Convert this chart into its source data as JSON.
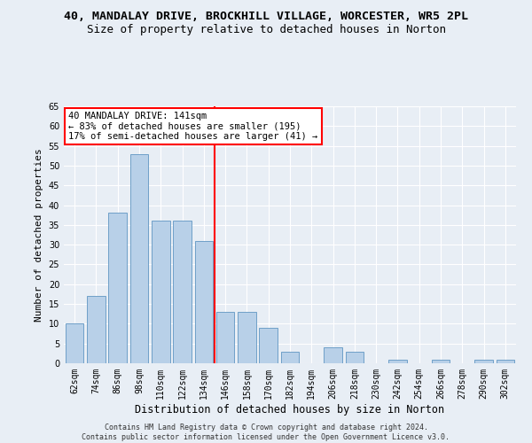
{
  "title": "40, MANDALAY DRIVE, BROCKHILL VILLAGE, WORCESTER, WR5 2PL",
  "subtitle": "Size of property relative to detached houses in Norton",
  "xlabel": "Distribution of detached houses by size in Norton",
  "ylabel": "Number of detached properties",
  "categories": [
    "62sqm",
    "74sqm",
    "86sqm",
    "98sqm",
    "110sqm",
    "122sqm",
    "134sqm",
    "146sqm",
    "158sqm",
    "170sqm",
    "182sqm",
    "194sqm",
    "206sqm",
    "218sqm",
    "230sqm",
    "242sqm",
    "254sqm",
    "266sqm",
    "278sqm",
    "290sqm",
    "302sqm"
  ],
  "values": [
    10,
    17,
    38,
    53,
    36,
    36,
    31,
    13,
    13,
    9,
    3,
    0,
    4,
    3,
    0,
    1,
    0,
    1,
    0,
    1,
    1
  ],
  "bar_color": "#b8d0e8",
  "bar_edge_color": "#6fa0c8",
  "reference_line_x": 6.5,
  "annotation_text_line1": "40 MANDALAY DRIVE: 141sqm",
  "annotation_text_line2": "← 83% of detached houses are smaller (195)",
  "annotation_text_line3": "17% of semi-detached houses are larger (41) →",
  "annotation_box_color": "white",
  "annotation_box_edge": "red",
  "vline_color": "red",
  "background_color": "#e8eef5",
  "grid_color": "white",
  "ylim": [
    0,
    65
  ],
  "yticks": [
    0,
    5,
    10,
    15,
    20,
    25,
    30,
    35,
    40,
    45,
    50,
    55,
    60,
    65
  ],
  "footer": "Contains HM Land Registry data © Crown copyright and database right 2024.\nContains public sector information licensed under the Open Government Licence v3.0.",
  "title_fontsize": 9.5,
  "subtitle_fontsize": 9,
  "tick_fontsize": 7,
  "ylabel_fontsize": 8,
  "xlabel_fontsize": 8.5,
  "annotation_fontsize": 7.5,
  "footer_fontsize": 6
}
